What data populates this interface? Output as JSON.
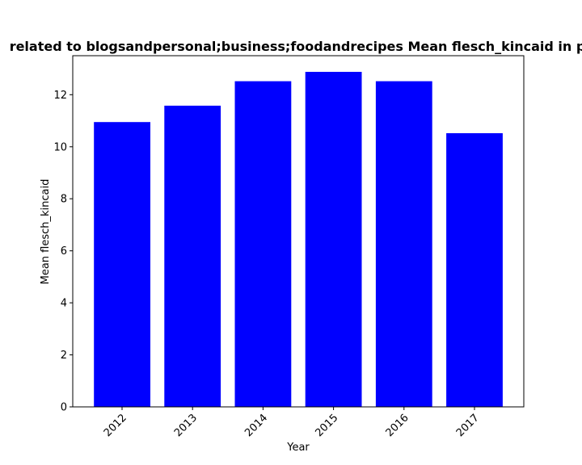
{
  "chart_data": {
    "type": "bar",
    "title": "related to blogsandpersonal;business;foodandrecipes Mean flesch_kincaid in p",
    "xlabel": "Year",
    "ylabel": "Mean flesch_kincaid",
    "categories": [
      "2012",
      "2013",
      "2014",
      "2015",
      "2016",
      "2017"
    ],
    "values": [
      10.95,
      11.58,
      12.52,
      12.88,
      12.52,
      10.52
    ],
    "ylim": [
      0,
      13.5
    ],
    "yticks": [
      0,
      2,
      4,
      6,
      8,
      10,
      12
    ],
    "bar_color": "#0000ff",
    "grid": false,
    "x_tick_rotation": 45
  }
}
